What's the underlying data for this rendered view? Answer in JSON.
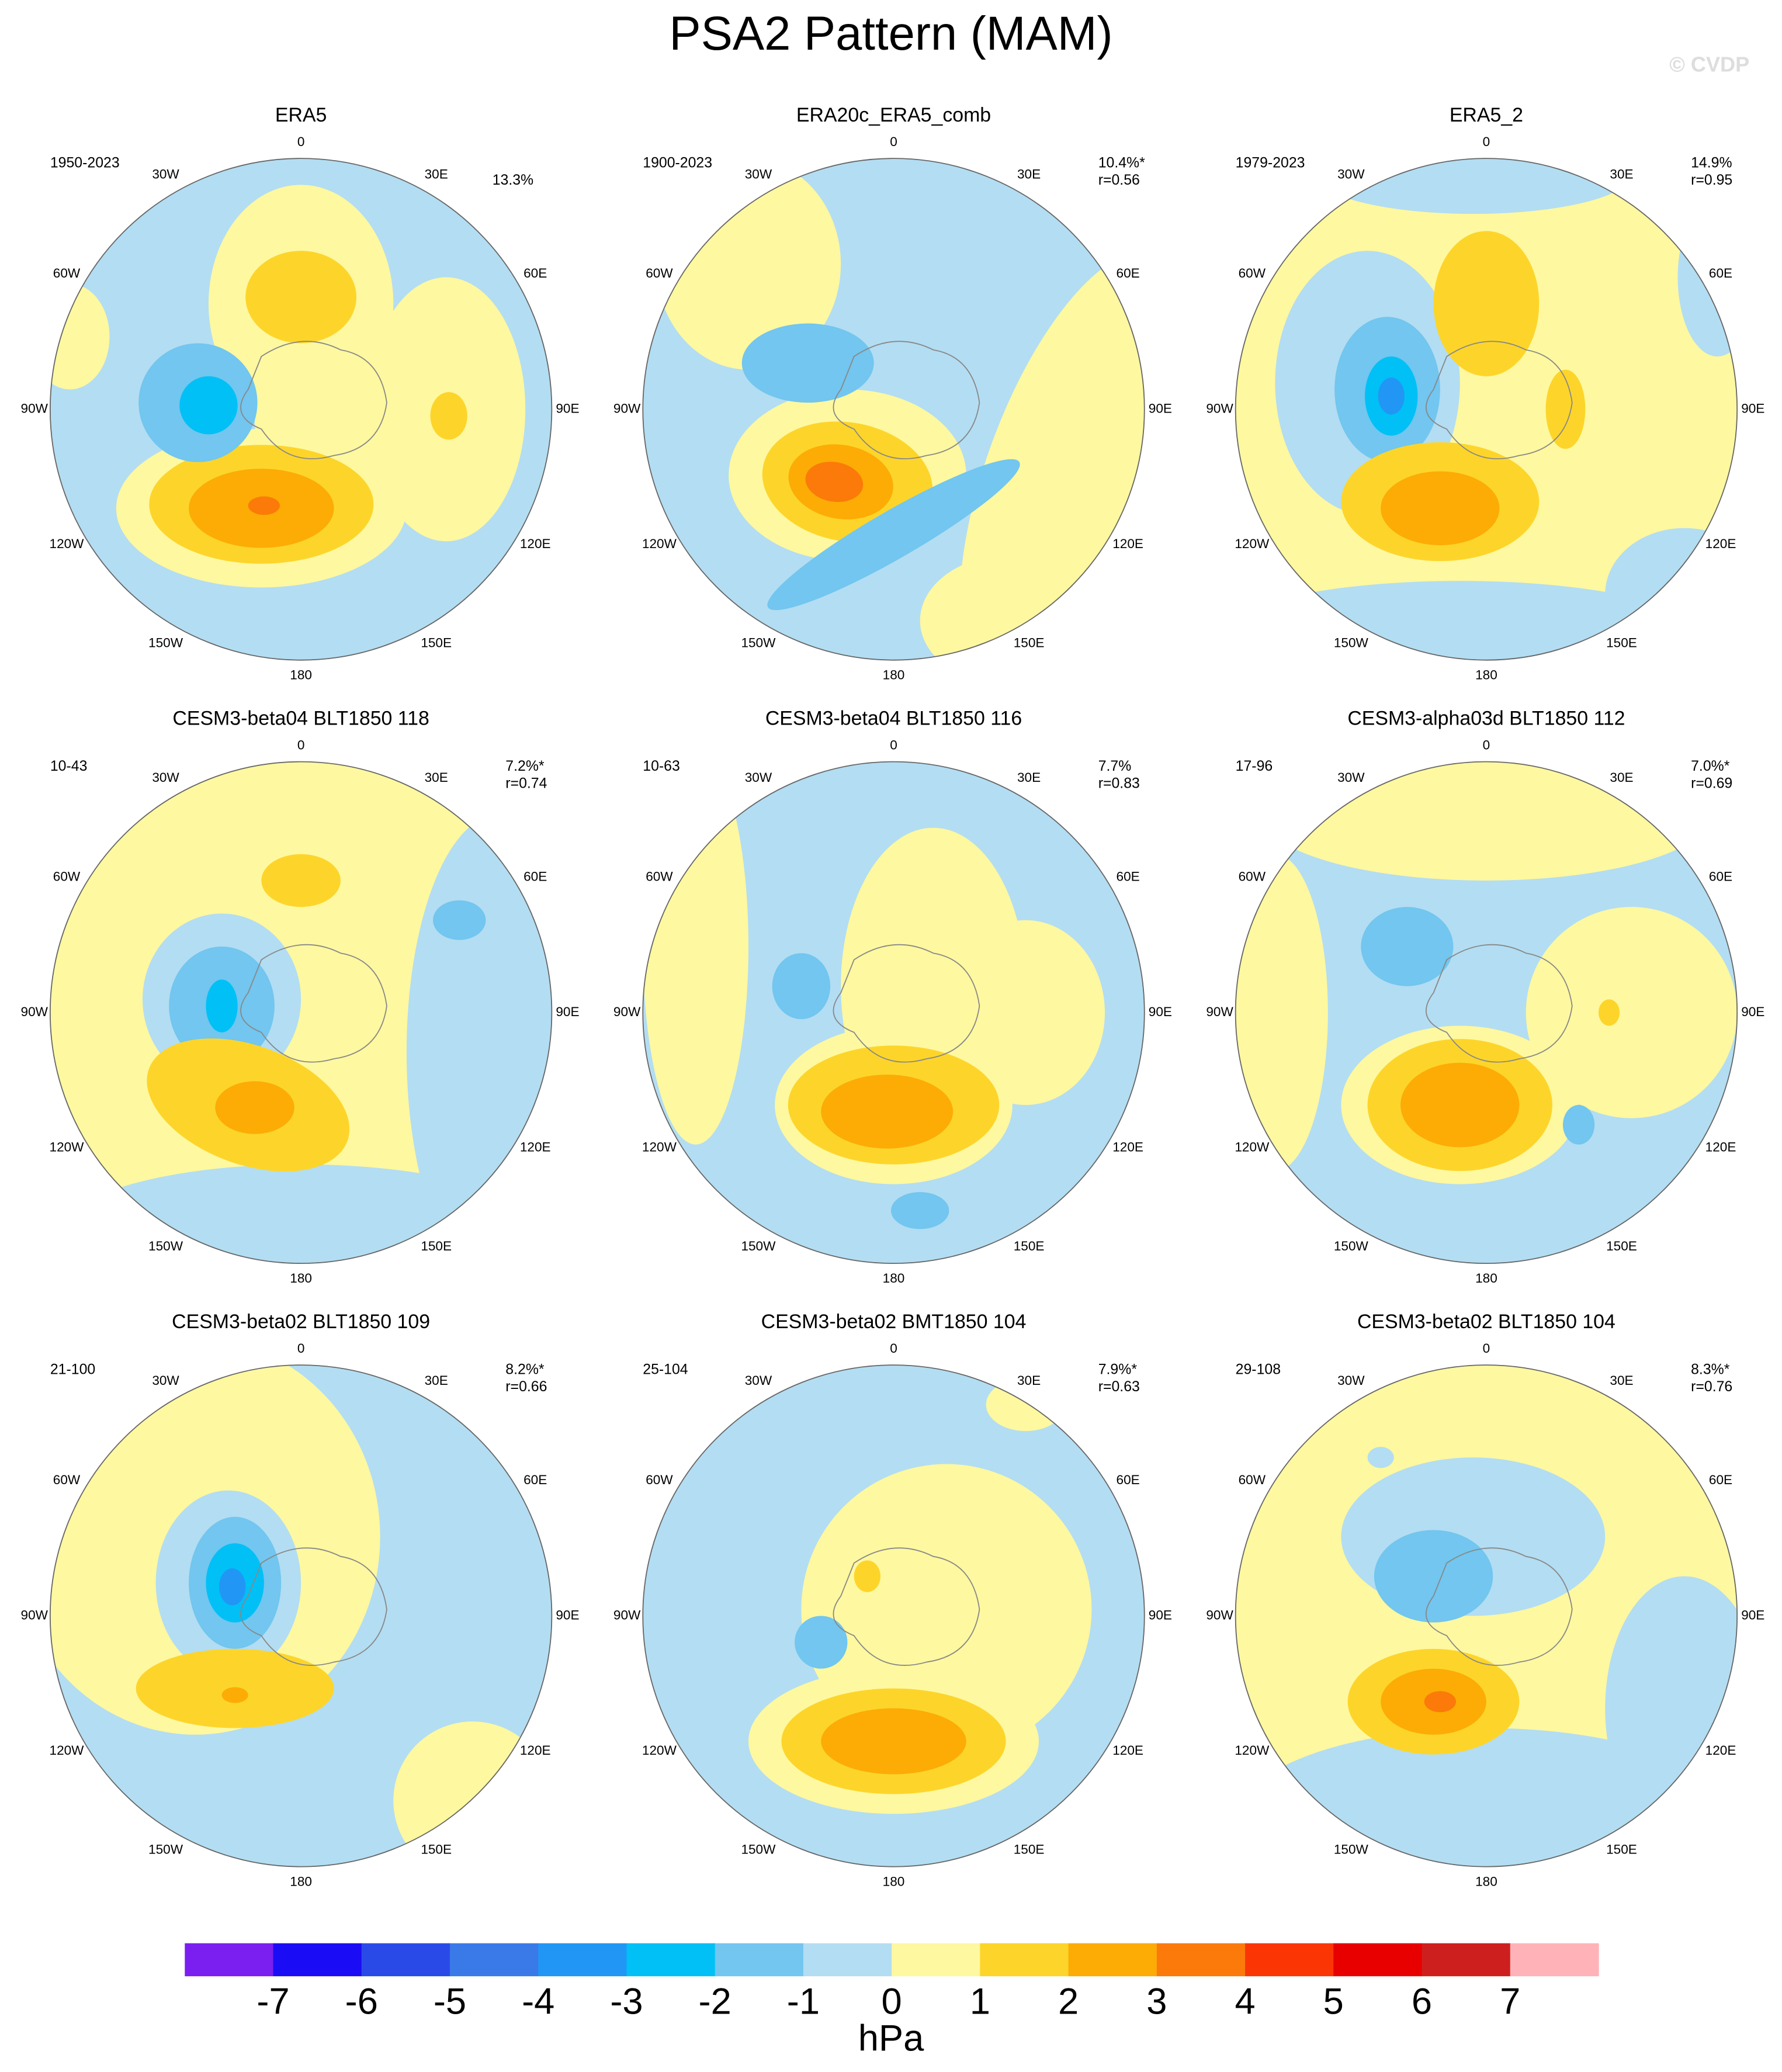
{
  "header": {
    "title": "PSA2 Pattern (MAM)",
    "watermark": "© CVDP"
  },
  "lon_labels": [
    "0",
    "30E",
    "60E",
    "90E",
    "120E",
    "150E",
    "180",
    "150W",
    "120W",
    "90W",
    "60W",
    "30W"
  ],
  "panels": [
    {
      "title": "ERA5",
      "years": "1950-2023",
      "pct": "13.3%"
    },
    {
      "title": "ERA20c_ERA5_comb",
      "years": "1900-2023",
      "pct": "10.4%*",
      "r": "r=0.56"
    },
    {
      "title": "ERA5_2",
      "years": "1979-2023",
      "pct": "14.9%",
      "r": "r=0.95"
    },
    {
      "title": "CESM3-beta04 BLT1850 118",
      "years": "10-43",
      "pct": "7.2%*",
      "r": "r=0.74"
    },
    {
      "title": "CESM3-beta04 BLT1850 116",
      "years": "10-63",
      "pct": "7.7%",
      "r": "r=0.83"
    },
    {
      "title": "CESM3-alpha03d BLT1850 112",
      "years": "17-96",
      "pct": "7.0%*",
      "r": "r=0.69"
    },
    {
      "title": "CESM3-beta02 BLT1850 109",
      "years": "21-100",
      "pct": "8.2%*",
      "r": "r=0.66"
    },
    {
      "title": "CESM3-beta02 BMT1850 104",
      "years": "25-104",
      "pct": "7.9%*",
      "r": "r=0.63"
    },
    {
      "title": "CESM3-beta02 BLT1850 104",
      "years": "29-108",
      "pct": "8.3%*",
      "r": "r=0.76"
    }
  ],
  "colorbar": {
    "ticks": [
      -7,
      -6,
      -5,
      -4,
      -3,
      -2,
      -1,
      0,
      1,
      2,
      3,
      4,
      5,
      6,
      7
    ],
    "colors": [
      "#7a1ff0",
      "#1a0df5",
      "#2a4ae8",
      "#3a7ae8",
      "#2196f5",
      "#00c0f5",
      "#72c6ef",
      "#b3ddf2",
      "#fef8a0",
      "#fdd52a",
      "#fcac05",
      "#fb7a09",
      "#fc3505",
      "#e80000",
      "#ce1f1f",
      "#ffb3b8"
    ],
    "unit": "hPa"
  }
}
